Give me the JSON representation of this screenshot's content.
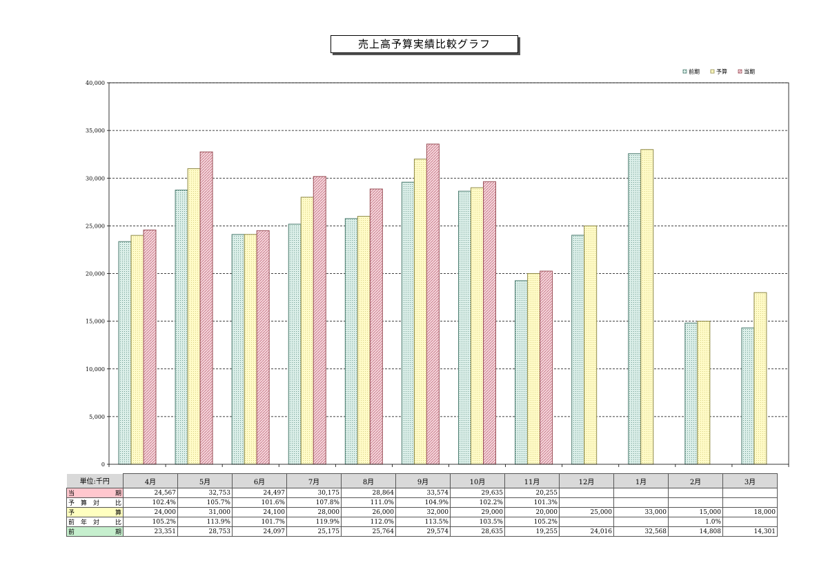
{
  "title": "売上高予算実績比較グラフ",
  "colors": {
    "prev_fill": "#dcefe9",
    "prev_stroke": "#4a7a6e",
    "budget_fill": "#fffbc8",
    "budget_stroke": "#8f8a48",
    "curr_fill": "#f6d6dc",
    "curr_stroke": "#9a5058",
    "curr_label_bg": "#ffc7ce",
    "budget_label_bg": "#ffffc0",
    "prev_label_bg": "#c6efce",
    "header_bg": "#d9d9d9"
  },
  "chart_data": {
    "type": "bar",
    "categories": [
      "4月",
      "5月",
      "6月",
      "7月",
      "8月",
      "9月",
      "10月",
      "11月",
      "12月",
      "1月",
      "2月",
      "3月"
    ],
    "series": [
      {
        "name": "前期",
        "values": [
          23351,
          28753,
          24097,
          25175,
          25764,
          29574,
          28635,
          19255,
          24016,
          32568,
          14808,
          14301
        ]
      },
      {
        "name": "予算",
        "values": [
          24000,
          31000,
          24100,
          28000,
          26000,
          32000,
          29000,
          20000,
          25000,
          33000,
          15000,
          18000
        ]
      },
      {
        "name": "当期",
        "values": [
          24567,
          32753,
          24497,
          30175,
          28864,
          33574,
          29635,
          20255,
          null,
          null,
          null,
          null
        ]
      }
    ],
    "ylim": [
      0,
      40000
    ],
    "yticks": [
      "0",
      "5,000",
      "10,000",
      "15,000",
      "20,000",
      "25,000",
      "30,000",
      "35,000",
      "40,000"
    ],
    "grid": true,
    "legend_placement": "top-right"
  },
  "table": {
    "unit_label": "単位:千円",
    "rows": [
      {
        "label_l": "当",
        "label_r": "期",
        "bg": "#ffc7ce",
        "cells": [
          "24,567",
          "32,753",
          "24,497",
          "30,175",
          "28,864",
          "33,574",
          "29,635",
          "20,255",
          "",
          "",
          "",
          ""
        ]
      },
      {
        "label_l": "予　算　対",
        "label_r": "比",
        "bg": "",
        "cells": [
          "102.4%",
          "105.7%",
          "101.6%",
          "107.8%",
          "111.0%",
          "104.9%",
          "102.2%",
          "101.3%",
          "",
          "",
          "",
          ""
        ]
      },
      {
        "label_l": "予",
        "label_r": "算",
        "bg": "#ffffc0",
        "cells": [
          "24,000",
          "31,000",
          "24,100",
          "28,000",
          "26,000",
          "32,000",
          "29,000",
          "20,000",
          "25,000",
          "33,000",
          "15,000",
          "18,000"
        ]
      },
      {
        "label_l": "前　年　対",
        "label_r": "比",
        "bg": "",
        "cells": [
          "105.2%",
          "113.9%",
          "101.7%",
          "119.9%",
          "112.0%",
          "113.5%",
          "103.5%",
          "105.2%",
          "",
          "",
          "1.0%",
          ""
        ]
      },
      {
        "label_l": "前",
        "label_r": "期",
        "bg": "#c6efce",
        "cells": [
          "23,351",
          "28,753",
          "24,097",
          "25,175",
          "25,764",
          "29,574",
          "28,635",
          "19,255",
          "24,016",
          "32,568",
          "14,808",
          "14,301"
        ]
      }
    ]
  }
}
